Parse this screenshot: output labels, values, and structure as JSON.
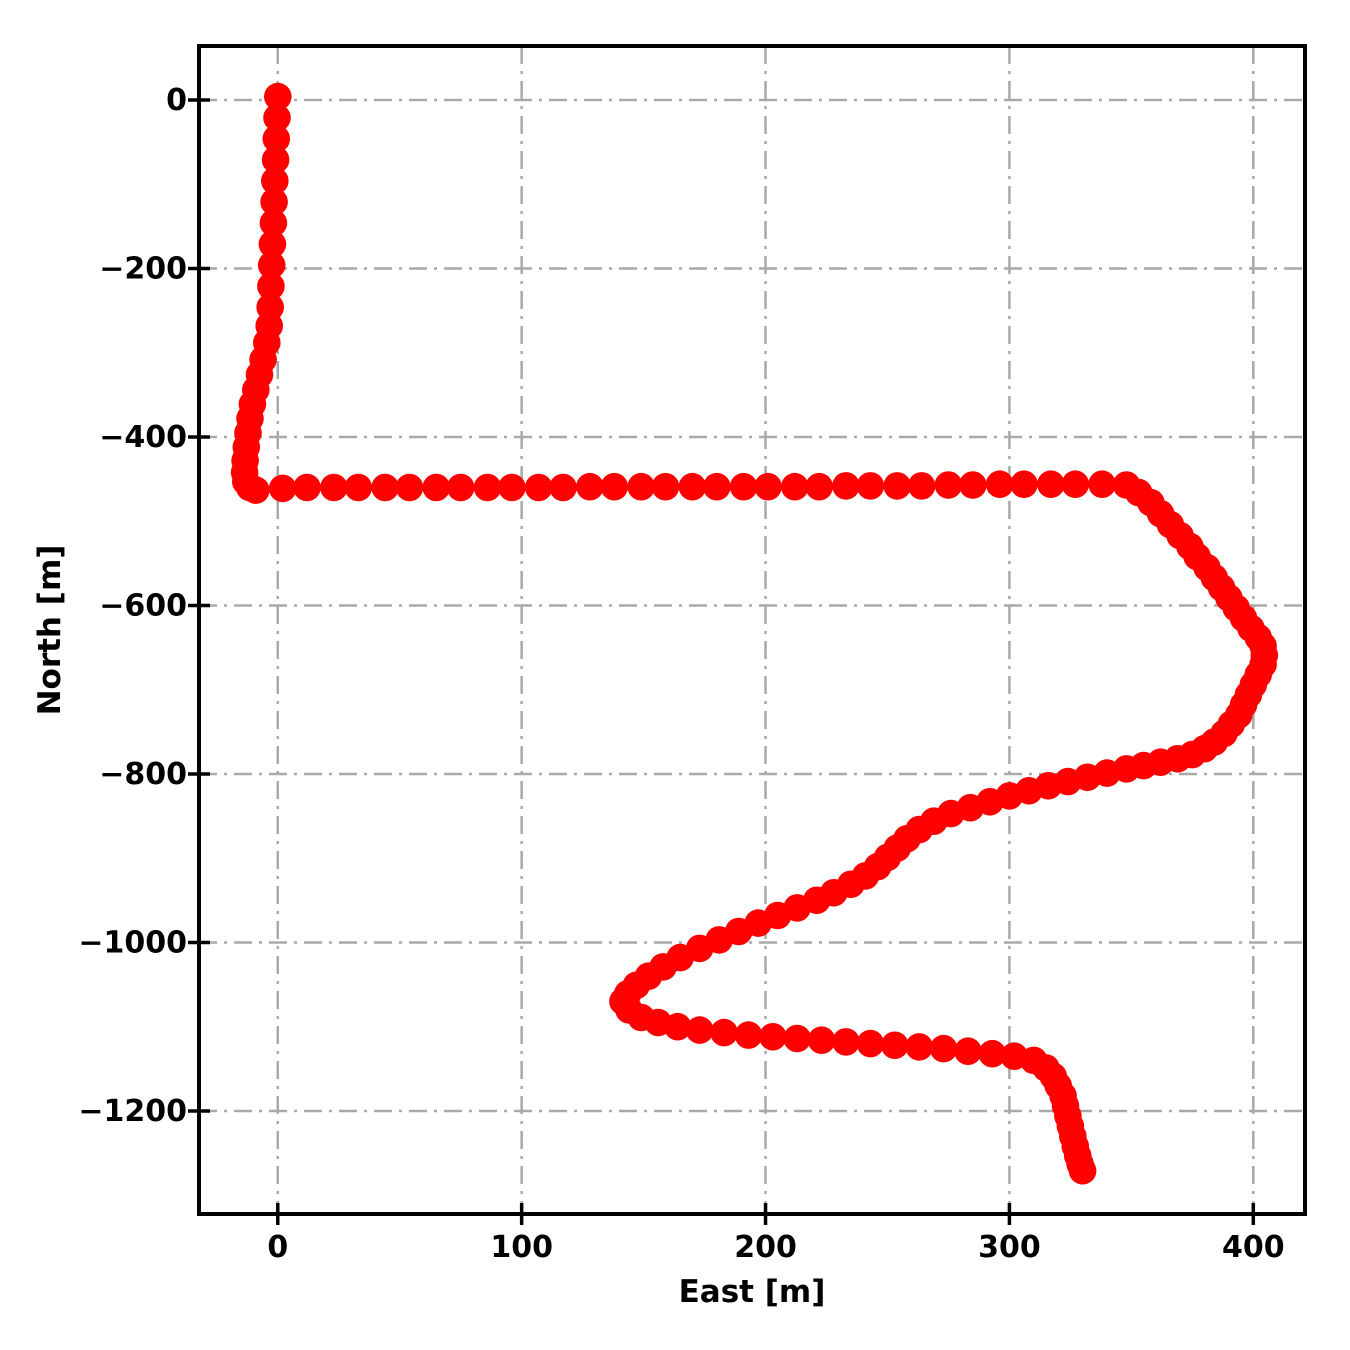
{
  "figure": {
    "background": "#ffffff",
    "frame_color": "#000000",
    "grid_color": "#a9a9a9",
    "grid_style": "dash-dot"
  },
  "chart_data": {
    "type": "scatter",
    "title": "",
    "xlabel": "East [m]",
    "ylabel": "North [m]",
    "xlim": [
      -32.3,
      421.2
    ],
    "ylim": [
      -1322.3,
      64.1
    ],
    "x_ticks": [
      0,
      100,
      200,
      300,
      400
    ],
    "y_ticks": [
      0,
      -200,
      -400,
      -600,
      -800,
      -1000,
      -1200
    ],
    "grid": true,
    "legend": false,
    "marker": "circle",
    "marker_color": "#ff0000",
    "series": [
      {
        "name": "trajectory",
        "points": [
          [
            0,
            4
          ],
          [
            -0.3,
            -21
          ],
          [
            -0.6,
            -46
          ],
          [
            -0.9,
            -71
          ],
          [
            -1.2,
            -96
          ],
          [
            -1.5,
            -121
          ],
          [
            -1.8,
            -146
          ],
          [
            -2.2,
            -171
          ],
          [
            -2.5,
            -196
          ],
          [
            -2.8,
            -221
          ],
          [
            -3.1,
            -246
          ],
          [
            -3.5,
            -268
          ],
          [
            -4.5,
            -288
          ],
          [
            -6,
            -308
          ],
          [
            -7.5,
            -326
          ],
          [
            -9,
            -344
          ],
          [
            -10.4,
            -361
          ],
          [
            -11.4,
            -378
          ],
          [
            -12.2,
            -395
          ],
          [
            -12.9,
            -412
          ],
          [
            -13.4,
            -428
          ],
          [
            -13.6,
            -442
          ],
          [
            -13.1,
            -453
          ],
          [
            -11.5,
            -460
          ],
          [
            -9,
            -463
          ],
          [
            2,
            -461
          ],
          [
            12,
            -460
          ],
          [
            23,
            -460
          ],
          [
            33,
            -460
          ],
          [
            44,
            -460
          ],
          [
            54,
            -460
          ],
          [
            65,
            -460
          ],
          [
            75,
            -460
          ],
          [
            86,
            -460
          ],
          [
            96,
            -460
          ],
          [
            107,
            -460
          ],
          [
            117,
            -460
          ],
          [
            128,
            -459
          ],
          [
            138,
            -459
          ],
          [
            149,
            -459
          ],
          [
            159,
            -459
          ],
          [
            170,
            -459
          ],
          [
            180,
            -459
          ],
          [
            191,
            -459
          ],
          [
            201,
            -459
          ],
          [
            212,
            -459
          ],
          [
            222,
            -459
          ],
          [
            233,
            -458
          ],
          [
            243,
            -458
          ],
          [
            254,
            -458
          ],
          [
            264,
            -458
          ],
          [
            275,
            -457
          ],
          [
            285,
            -457
          ],
          [
            296,
            -456
          ],
          [
            306,
            -456
          ],
          [
            317,
            -456
          ],
          [
            327,
            -456
          ],
          [
            338,
            -456
          ],
          [
            348,
            -457
          ],
          [
            353,
            -466
          ],
          [
            358,
            -478
          ],
          [
            362,
            -491
          ],
          [
            366,
            -504
          ],
          [
            370,
            -517
          ],
          [
            374,
            -530
          ],
          [
            377,
            -542
          ],
          [
            381,
            -555
          ],
          [
            384,
            -567
          ],
          [
            387,
            -579
          ],
          [
            390,
            -591
          ],
          [
            393,
            -603
          ],
          [
            396,
            -615
          ],
          [
            399,
            -627
          ],
          [
            402,
            -638
          ],
          [
            404,
            -648
          ],
          [
            404.5,
            -659
          ],
          [
            404,
            -670
          ],
          [
            402,
            -682
          ],
          [
            400,
            -694
          ],
          [
            398,
            -706
          ],
          [
            396,
            -718
          ],
          [
            394,
            -730
          ],
          [
            391,
            -741
          ],
          [
            388,
            -752
          ],
          [
            384,
            -762
          ],
          [
            380,
            -770
          ],
          [
            375,
            -777
          ],
          [
            369,
            -782
          ],
          [
            362,
            -786
          ],
          [
            355,
            -790
          ],
          [
            348,
            -794
          ],
          [
            340,
            -799
          ],
          [
            332,
            -804
          ],
          [
            324,
            -809
          ],
          [
            316,
            -814
          ],
          [
            308,
            -820
          ],
          [
            300,
            -826
          ],
          [
            292,
            -833
          ],
          [
            284,
            -840
          ],
          [
            276,
            -847
          ],
          [
            269,
            -856
          ],
          [
            263,
            -866
          ],
          [
            258,
            -877
          ],
          [
            254,
            -888
          ],
          [
            250,
            -899
          ],
          [
            246,
            -910
          ],
          [
            241,
            -921
          ],
          [
            235,
            -931
          ],
          [
            228,
            -941
          ],
          [
            221,
            -950
          ],
          [
            213,
            -959
          ],
          [
            205,
            -968
          ],
          [
            197,
            -977
          ],
          [
            189,
            -987
          ],
          [
            181,
            -997
          ],
          [
            173,
            -1007
          ],
          [
            165,
            -1018
          ],
          [
            158,
            -1029
          ],
          [
            152,
            -1040
          ],
          [
            147,
            -1051
          ],
          [
            143.5,
            -1061
          ],
          [
            141.5,
            -1070
          ],
          [
            144,
            -1080
          ],
          [
            149,
            -1089
          ],
          [
            156,
            -1095
          ],
          [
            164,
            -1100
          ],
          [
            173,
            -1104
          ],
          [
            183,
            -1107
          ],
          [
            193,
            -1110
          ],
          [
            203,
            -1112
          ],
          [
            213,
            -1114
          ],
          [
            223,
            -1116
          ],
          [
            233,
            -1118
          ],
          [
            243,
            -1120
          ],
          [
            253,
            -1122
          ],
          [
            263,
            -1124
          ],
          [
            273,
            -1126
          ],
          [
            283,
            -1129
          ],
          [
            293,
            -1132
          ],
          [
            302,
            -1135
          ],
          [
            310,
            -1140
          ],
          [
            315,
            -1149
          ],
          [
            318,
            -1159
          ],
          [
            320,
            -1170
          ],
          [
            322,
            -1182
          ],
          [
            323,
            -1194
          ],
          [
            324,
            -1206
          ],
          [
            325,
            -1218
          ],
          [
            326,
            -1230
          ],
          [
            327,
            -1242
          ],
          [
            328,
            -1253
          ],
          [
            329,
            -1263
          ],
          [
            330,
            -1271
          ]
        ]
      }
    ]
  }
}
